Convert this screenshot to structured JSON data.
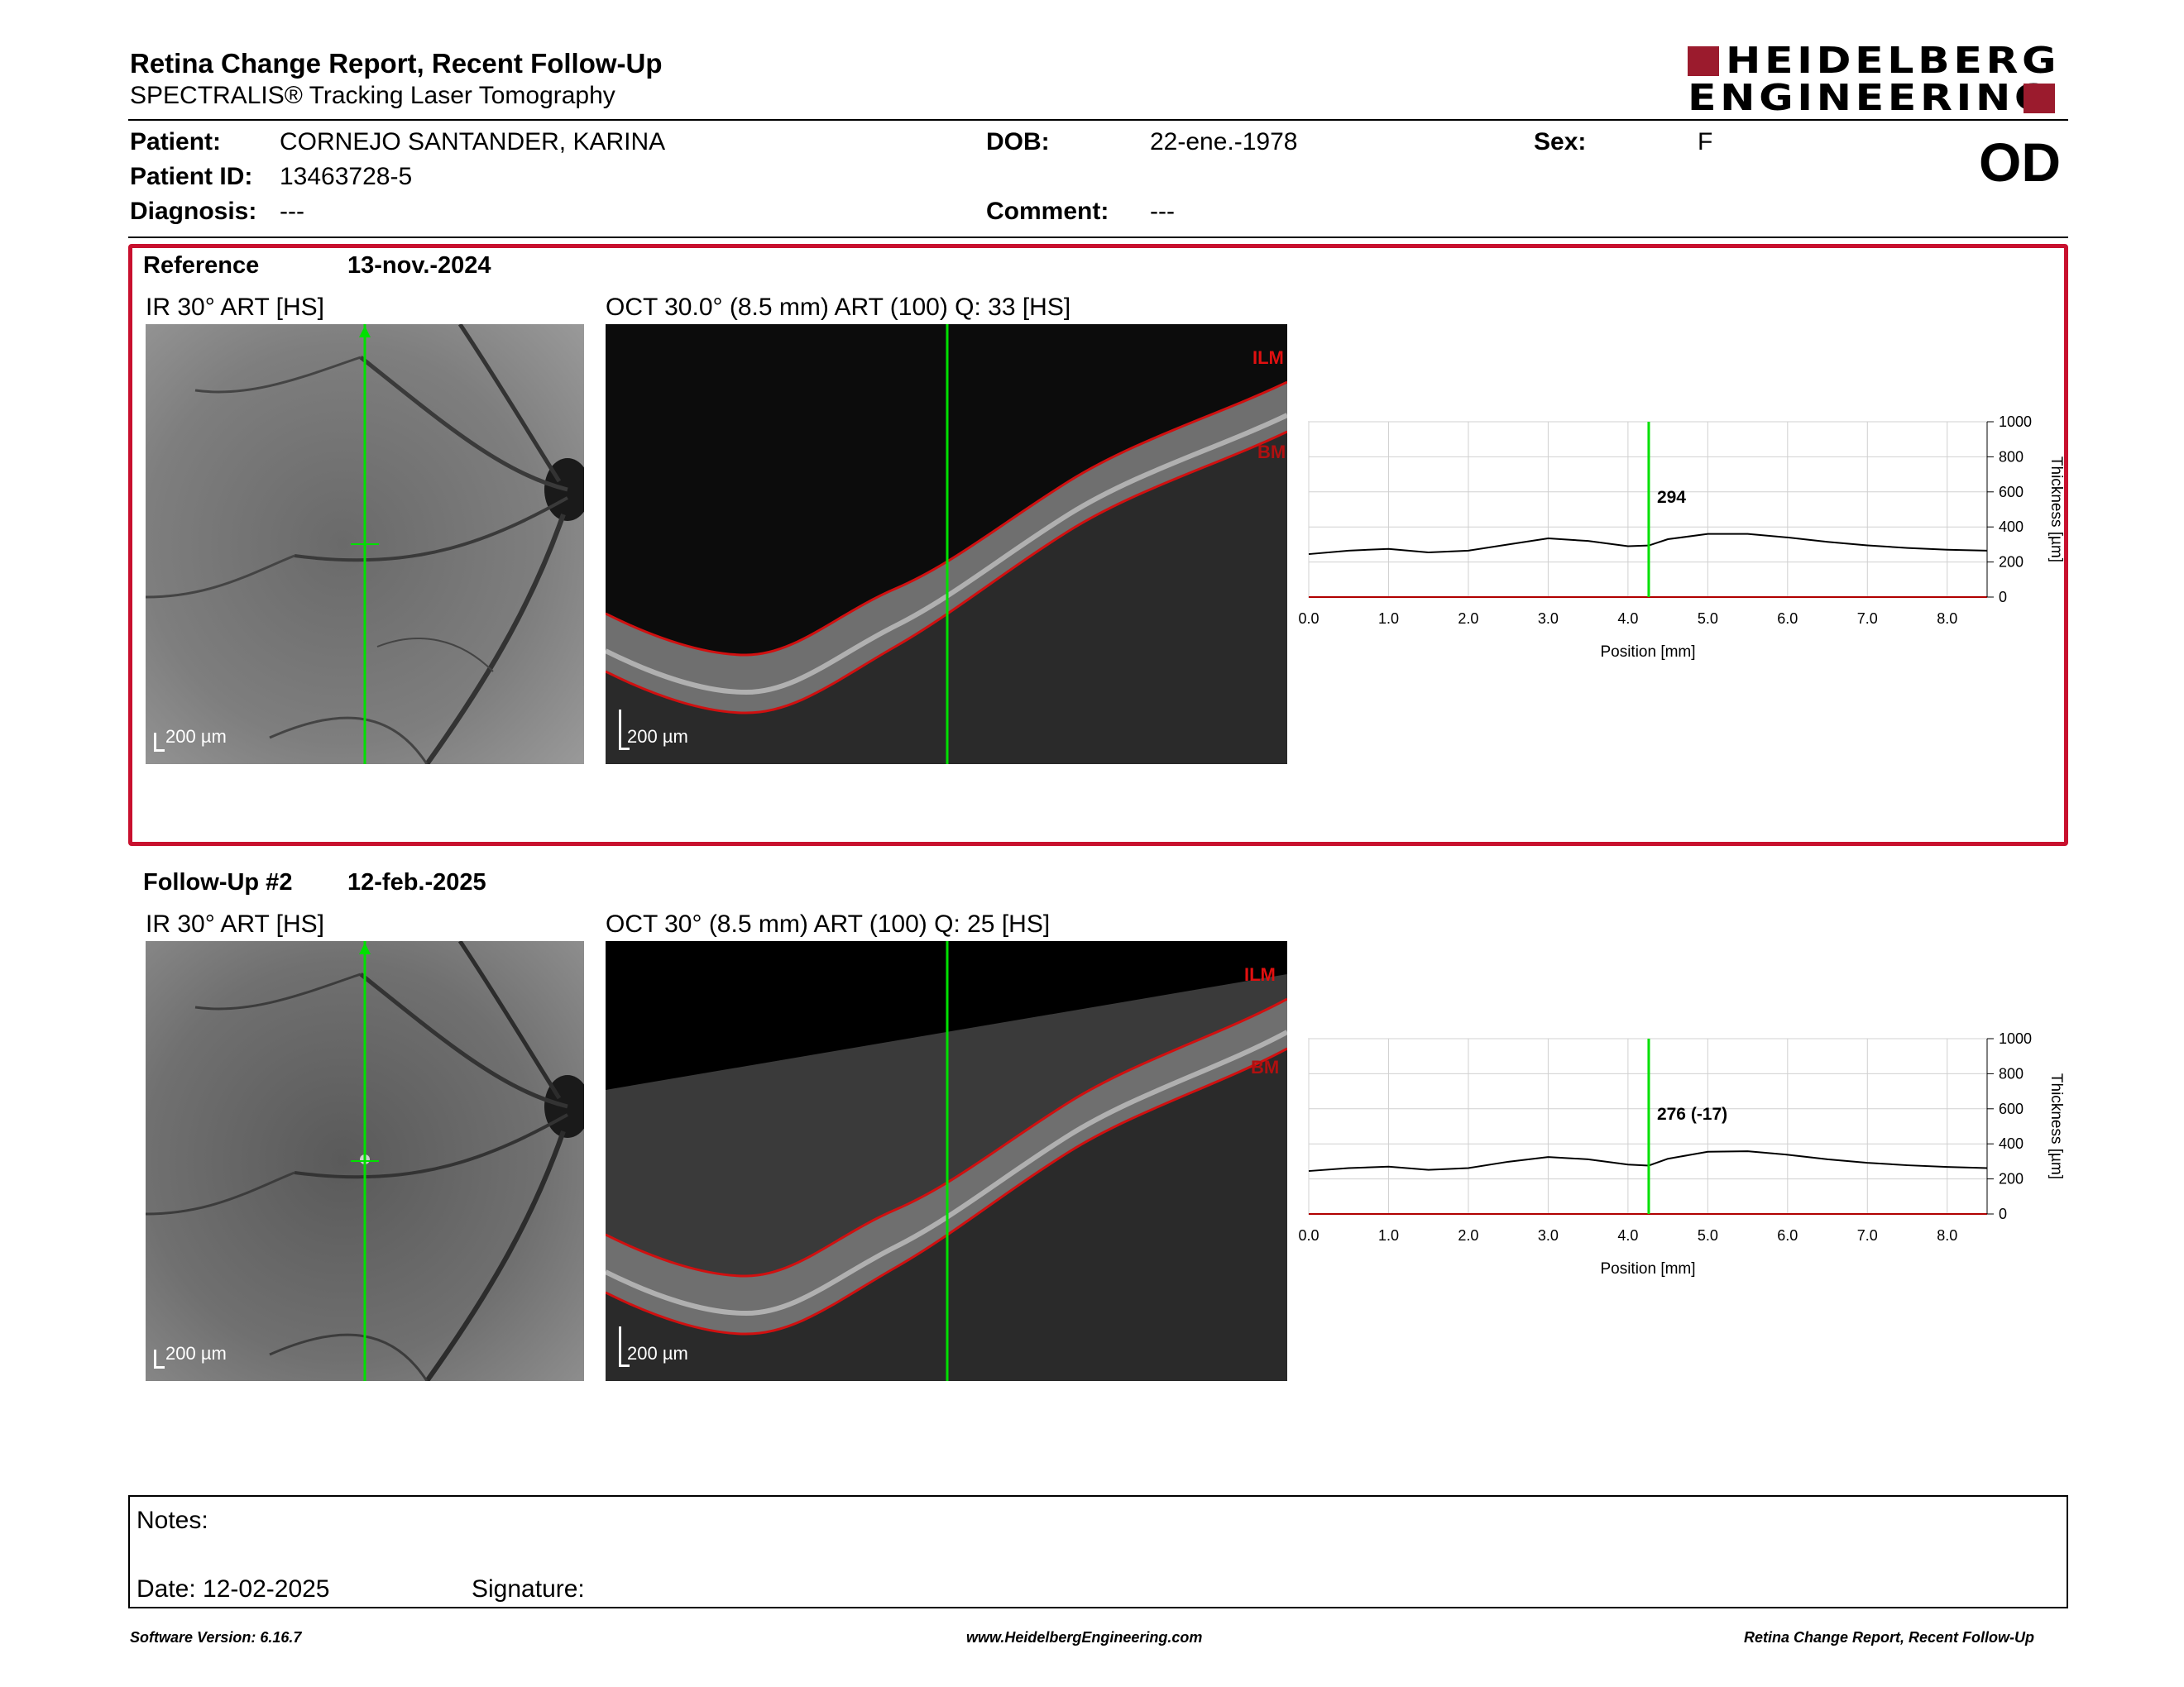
{
  "header": {
    "title": "Retina Change Report, Recent Follow-Up",
    "subtitle": "SPECTRALIS® Tracking Laser Tomography",
    "logo_line1": "HEIDELBERG",
    "logo_line2": "ENGINEERING",
    "eye": "OD"
  },
  "patient": {
    "patient_label": "Patient:",
    "patient_value": "CORNEJO SANTANDER, KARINA",
    "id_label": "Patient ID:",
    "id_value": "13463728-5",
    "diagnosis_label": "Diagnosis:",
    "diagnosis_value": "---",
    "dob_label": "DOB:",
    "dob_value": "22-ene.-1978",
    "comment_label": "Comment:",
    "comment_value": "---",
    "sex_label": "Sex:",
    "sex_value": "F"
  },
  "reference": {
    "label": "Reference",
    "date": "13-nov.-2024",
    "ir_label": "IR 30° ART [HS]",
    "oct_label": "OCT 30.0° (8.5 mm) ART (100) Q: 33 [HS]",
    "ir_scale": "200 µm",
    "oct_scale": "200 µm",
    "ilm_label": "ILM",
    "bm_label": "BM"
  },
  "followup": {
    "label": "Follow-Up #2",
    "date": "12-feb.-2025",
    "ir_label": "IR 30° ART [HS]",
    "oct_label": "OCT 30° (8.5 mm) ART (100) Q: 25 [HS]",
    "ir_scale": "200 µm",
    "oct_scale": "200 µm",
    "ilm_label": "ILM",
    "bm_label": "BM"
  },
  "chart_data": [
    {
      "type": "line",
      "xlabel": "Position [mm]",
      "ylabel": "Thickness [µm]",
      "xlim": [
        0,
        8.5
      ],
      "ylim": [
        0,
        1000
      ],
      "x_ticks": [
        "0.0",
        "1.0",
        "2.0",
        "3.0",
        "4.0",
        "5.0",
        "6.0",
        "7.0",
        "8.0"
      ],
      "y_ticks": [
        "0",
        "200",
        "400",
        "600",
        "800",
        "1000"
      ],
      "grid": true,
      "cursor_x": 4.26,
      "cursor_label": "294",
      "series": [
        {
          "x": [
            0,
            0.5,
            1.0,
            1.5,
            2.0,
            2.5,
            3.0,
            3.5,
            4.0,
            4.26,
            4.5,
            5.0,
            5.5,
            6.0,
            6.5,
            7.0,
            7.5,
            8.0,
            8.5
          ],
          "y": [
            245,
            265,
            275,
            255,
            265,
            300,
            335,
            320,
            290,
            294,
            330,
            360,
            360,
            340,
            315,
            295,
            280,
            270,
            265
          ]
        }
      ]
    },
    {
      "type": "line",
      "xlabel": "Position [mm]",
      "ylabel": "Thickness [µm]",
      "xlim": [
        0,
        8.5
      ],
      "ylim": [
        0,
        1000
      ],
      "x_ticks": [
        "0.0",
        "1.0",
        "2.0",
        "3.0",
        "4.0",
        "5.0",
        "6.0",
        "7.0",
        "8.0"
      ],
      "y_ticks": [
        "0",
        "200",
        "400",
        "600",
        "800",
        "1000"
      ],
      "grid": true,
      "cursor_x": 4.26,
      "cursor_label": "276 (-17)",
      "series": [
        {
          "x": [
            0,
            0.5,
            1.0,
            1.5,
            2.0,
            2.5,
            3.0,
            3.5,
            4.0,
            4.26,
            4.5,
            5.0,
            5.5,
            6.0,
            6.5,
            7.0,
            7.5,
            8.0,
            8.5
          ],
          "y": [
            245,
            262,
            270,
            252,
            262,
            298,
            325,
            312,
            282,
            276,
            315,
            355,
            358,
            338,
            312,
            292,
            278,
            268,
            262
          ]
        }
      ]
    }
  ],
  "notes": {
    "notes_label": "Notes:",
    "date_label": "Date: 12-02-2025",
    "signature_label": "Signature:"
  },
  "footer": {
    "software": "Software Version: 6.16.7",
    "website": "www.HeidelbergEngineering.com",
    "report": "Retina Change Report, Recent Follow-Up"
  },
  "colors": {
    "accent_red": "#c8102e",
    "logo_red": "#9b1b2d",
    "cursor_green": "#00e000"
  }
}
